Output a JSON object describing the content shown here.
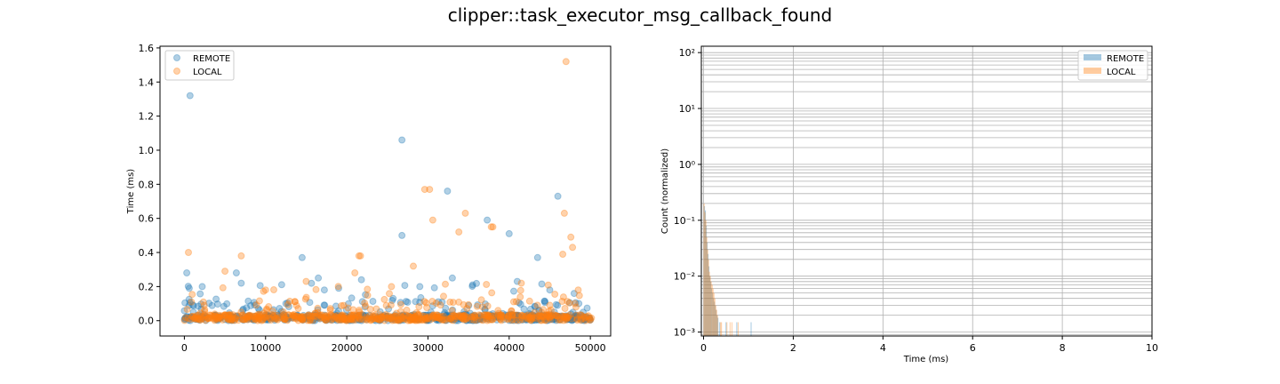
{
  "figure": {
    "title": "clipper::task_executor_msg_callback_found"
  },
  "chart_data": [
    {
      "type": "scatter",
      "xlabel": "",
      "ylabel": "Time (ms)",
      "xlim": [
        -3000,
        52500
      ],
      "ylim": [
        -0.09,
        1.61
      ],
      "xticks": [
        0,
        10000,
        20000,
        30000,
        40000,
        50000
      ],
      "yticks": [
        0.0,
        0.2,
        0.4,
        0.6,
        0.8,
        1.0,
        1.2,
        1.4,
        1.6
      ],
      "legend_placement": "upper-left",
      "grid": false,
      "series": [
        {
          "name": "REMOTE",
          "color": "#1f77b4",
          "notable_points": [
            [
              700,
              1.32
            ],
            [
              26800,
              1.06
            ],
            [
              32400,
              0.76
            ],
            [
              46000,
              0.73
            ],
            [
              37300,
              0.59
            ],
            [
              40000,
              0.51
            ],
            [
              26800,
              0.5
            ],
            [
              14500,
              0.37
            ],
            [
              300,
              0.28
            ],
            [
              6400,
              0.28
            ],
            [
              43500,
              0.37
            ],
            [
              16500,
              0.25
            ],
            [
              21800,
              0.24
            ],
            [
              33000,
              0.25
            ],
            [
              41000,
              0.23
            ],
            [
              7000,
              0.22
            ],
            [
              600,
              0.19
            ],
            [
              2200,
              0.2
            ],
            [
              19000,
              0.19
            ],
            [
              29000,
              0.2
            ],
            [
              35500,
              0.21
            ],
            [
              45000,
              0.18
            ],
            [
              48000,
              0.16
            ]
          ]
        },
        {
          "name": "LOCAL",
          "color": "#ff7f0e",
          "notable_points": [
            [
              47000,
              1.52
            ],
            [
              29600,
              0.77
            ],
            [
              30200,
              0.77
            ],
            [
              34600,
              0.63
            ],
            [
              46800,
              0.63
            ],
            [
              30600,
              0.59
            ],
            [
              37800,
              0.55
            ],
            [
              38000,
              0.55
            ],
            [
              33800,
              0.52
            ],
            [
              47600,
              0.49
            ],
            [
              47800,
              0.43
            ],
            [
              500,
              0.4
            ],
            [
              7000,
              0.38
            ],
            [
              21500,
              0.38
            ],
            [
              21700,
              0.38
            ],
            [
              46600,
              0.39
            ],
            [
              28200,
              0.32
            ],
            [
              5000,
              0.29
            ],
            [
              21000,
              0.28
            ],
            [
              15000,
              0.23
            ],
            [
              25500,
              0.2
            ],
            [
              41500,
              0.22
            ],
            [
              10000,
              0.18
            ],
            [
              48500,
              0.18
            ]
          ]
        }
      ]
    },
    {
      "type": "histogram",
      "xlabel": "Time (ms)",
      "ylabel": "Count (normalized)",
      "xlim": [
        -0.05,
        10
      ],
      "ylim": [
        0.00085,
        130
      ],
      "yscale": "log",
      "xticks": [
        0,
        2,
        4,
        6,
        8,
        10
      ],
      "yticks": [
        0.001,
        0.01,
        0.1,
        1,
        10,
        100
      ],
      "ytick_labels": [
        "10⁻³",
        "10⁻²",
        "10⁻¹",
        "10⁰",
        "10¹",
        "10²"
      ],
      "grid": true,
      "legend_placement": "upper-right",
      "series": [
        {
          "name": "REMOTE",
          "color": "#1f77b4",
          "bins": [
            [
              0.02,
              0.18
            ],
            [
              0.04,
              0.15
            ],
            [
              0.06,
              0.08
            ],
            [
              0.08,
              0.04
            ],
            [
              0.1,
              0.025
            ],
            [
              0.12,
              0.015
            ],
            [
              0.14,
              0.01
            ],
            [
              0.16,
              0.008
            ],
            [
              0.18,
              0.006
            ],
            [
              0.2,
              0.005
            ],
            [
              0.22,
              0.004
            ],
            [
              0.24,
              0.0035
            ],
            [
              0.26,
              0.003
            ],
            [
              0.28,
              0.0025
            ],
            [
              0.3,
              0.002
            ],
            [
              0.32,
              0.0018
            ],
            [
              0.36,
              0.0015
            ],
            [
              0.5,
              0.0015
            ],
            [
              0.74,
              0.0015
            ],
            [
              1.06,
              0.0015
            ]
          ]
        },
        {
          "name": "LOCAL",
          "color": "#ff7f0e",
          "bins": [
            [
              0.01,
              0.2
            ],
            [
              0.03,
              0.14
            ],
            [
              0.05,
              0.1
            ],
            [
              0.07,
              0.05
            ],
            [
              0.09,
              0.03
            ],
            [
              0.11,
              0.02
            ],
            [
              0.13,
              0.012
            ],
            [
              0.15,
              0.01
            ],
            [
              0.17,
              0.008
            ],
            [
              0.19,
              0.007
            ],
            [
              0.21,
              0.006
            ],
            [
              0.23,
              0.005
            ],
            [
              0.25,
              0.004
            ],
            [
              0.27,
              0.003
            ],
            [
              0.29,
              0.0025
            ],
            [
              0.31,
              0.002
            ],
            [
              0.38,
              0.0015
            ],
            [
              0.4,
              0.0015
            ],
            [
              0.52,
              0.0015
            ],
            [
              0.59,
              0.0015
            ],
            [
              0.63,
              0.0015
            ],
            [
              0.77,
              0.0015
            ]
          ]
        }
      ]
    }
  ]
}
